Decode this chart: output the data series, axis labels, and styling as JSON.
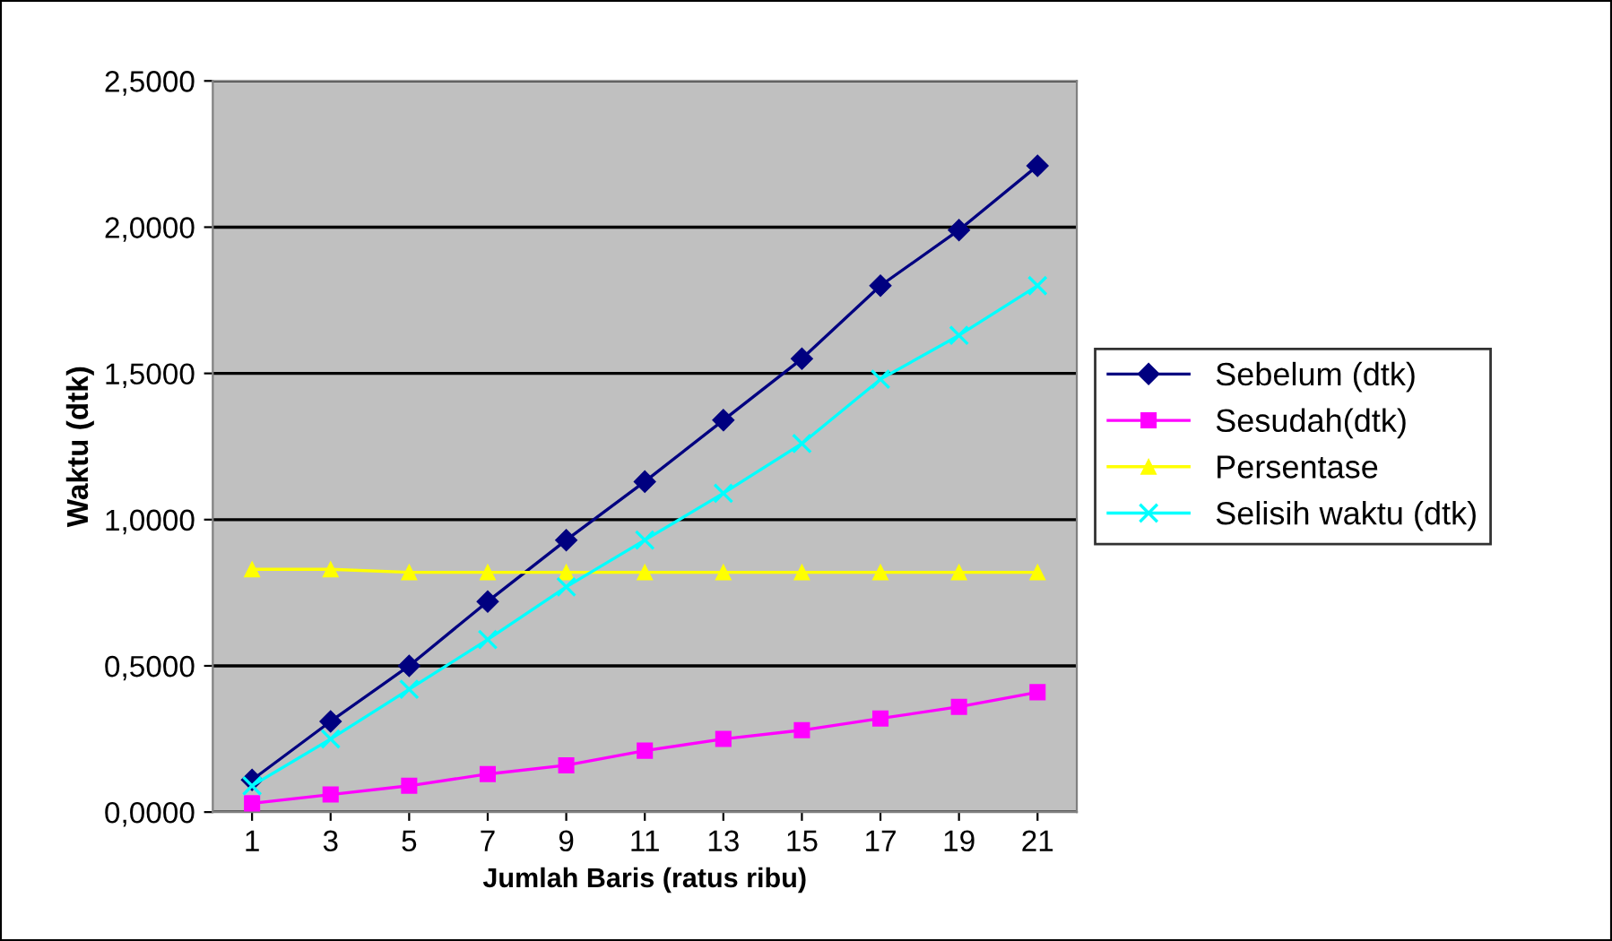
{
  "chart_data": {
    "type": "line",
    "xlabel": "Jumlah Baris (ratus ribu)",
    "ylabel": "Waktu (dtk)",
    "categories": [
      "1",
      "3",
      "5",
      "7",
      "9",
      "11",
      "13",
      "15",
      "17",
      "19",
      "21"
    ],
    "series": [
      {
        "name": "Sebelum (dtk)",
        "color": "#000080",
        "marker": "diamond",
        "values": [
          0.11,
          0.31,
          0.5,
          0.72,
          0.93,
          1.13,
          1.34,
          1.55,
          1.8,
          1.99,
          2.21
        ]
      },
      {
        "name": "Sesudah(dtk)",
        "color": "#ff00ff",
        "marker": "square",
        "values": [
          0.03,
          0.06,
          0.09,
          0.13,
          0.16,
          0.21,
          0.25,
          0.28,
          0.32,
          0.36,
          0.41
        ]
      },
      {
        "name": "Persentase",
        "color": "#ffff00",
        "marker": "triangle",
        "values": [
          0.83,
          0.83,
          0.82,
          0.82,
          0.82,
          0.82,
          0.82,
          0.82,
          0.82,
          0.82,
          0.82
        ]
      },
      {
        "name": "Selisih waktu (dtk)",
        "color": "#00ffff",
        "marker": "cross",
        "values": [
          0.09,
          0.25,
          0.42,
          0.59,
          0.77,
          0.93,
          1.09,
          1.26,
          1.48,
          1.63,
          1.8
        ]
      }
    ],
    "ylim": [
      0,
      2.5
    ],
    "yticks": [
      {
        "value": 0,
        "label": "0,0000"
      },
      {
        "value": 0.5,
        "label": "0,5000"
      },
      {
        "value": 1,
        "label": "1,0000"
      },
      {
        "value": 1.5,
        "label": "1,5000"
      },
      {
        "value": 2,
        "label": "2,0000"
      },
      {
        "value": 2.5,
        "label": "2,5000"
      }
    ],
    "grid": "y",
    "legend": "right"
  }
}
